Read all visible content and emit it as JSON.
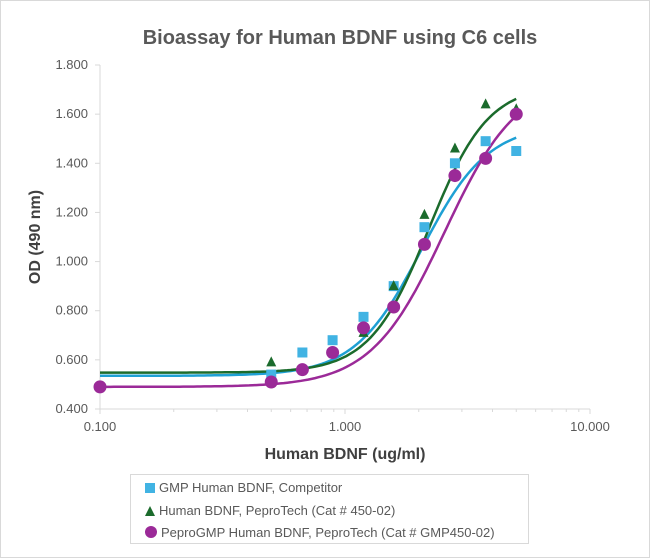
{
  "chart_data": {
    "type": "scatter",
    "title": "Bioassay for Human BDNF using C6 cells",
    "xlabel": "Human BDNF (ug/ml)",
    "ylabel": "OD (490 nm)",
    "xscale": "log",
    "xlim": [
      0.1,
      10
    ],
    "ylim": [
      0.4,
      1.8
    ],
    "xticks": [
      "0.100",
      "1.000",
      "10.000"
    ],
    "yticks": [
      "0.400",
      "0.600",
      "0.800",
      "1.000",
      "1.200",
      "1.400",
      "1.600",
      "1.800"
    ],
    "legend_position": "bottom",
    "grid": false,
    "series": [
      {
        "name": "GMP Human BDNF, Competitor",
        "marker": "square",
        "color": "#41b3e3",
        "line_color": "#1ea0d4",
        "x": [
          0.5,
          0.67,
          0.89,
          1.19,
          1.58,
          2.11,
          2.81,
          3.75,
          5.0
        ],
        "y": [
          0.54,
          0.63,
          0.68,
          0.775,
          0.9,
          1.14,
          1.4,
          1.49,
          1.45
        ],
        "fit": {
          "bottom": 0.535,
          "top": 1.56,
          "ec50": 2.05,
          "hill": 3.2
        }
      },
      {
        "name": "Human BDNF, PeproTech (Cat # 450-02)",
        "marker": "triangle",
        "color": "#1b6b2c",
        "line_color": "#1b6b2c",
        "x": [
          0.5,
          1.19,
          1.58,
          2.11,
          2.81,
          3.75,
          5.0
        ],
        "y": [
          0.59,
          0.71,
          0.9,
          1.19,
          1.46,
          1.64,
          1.62
        ],
        "fit": {
          "bottom": 0.548,
          "top": 1.72,
          "ec50": 2.2,
          "hill": 3.6
        }
      },
      {
        "name": "PeproGMP Human BDNF, PeproTech (Cat # GMP450-02)",
        "marker": "circle",
        "color": "#9b2a98",
        "line_color": "#9b2a98",
        "x": [
          0.1,
          0.5,
          0.67,
          0.89,
          1.19,
          1.58,
          2.11,
          2.81,
          3.75,
          5.0
        ],
        "y": [
          0.49,
          0.51,
          0.56,
          0.63,
          0.73,
          0.815,
          1.07,
          1.35,
          1.42,
          1.6
        ],
        "fit": {
          "bottom": 0.49,
          "top": 1.75,
          "ec50": 2.55,
          "hill": 2.9
        }
      }
    ]
  }
}
